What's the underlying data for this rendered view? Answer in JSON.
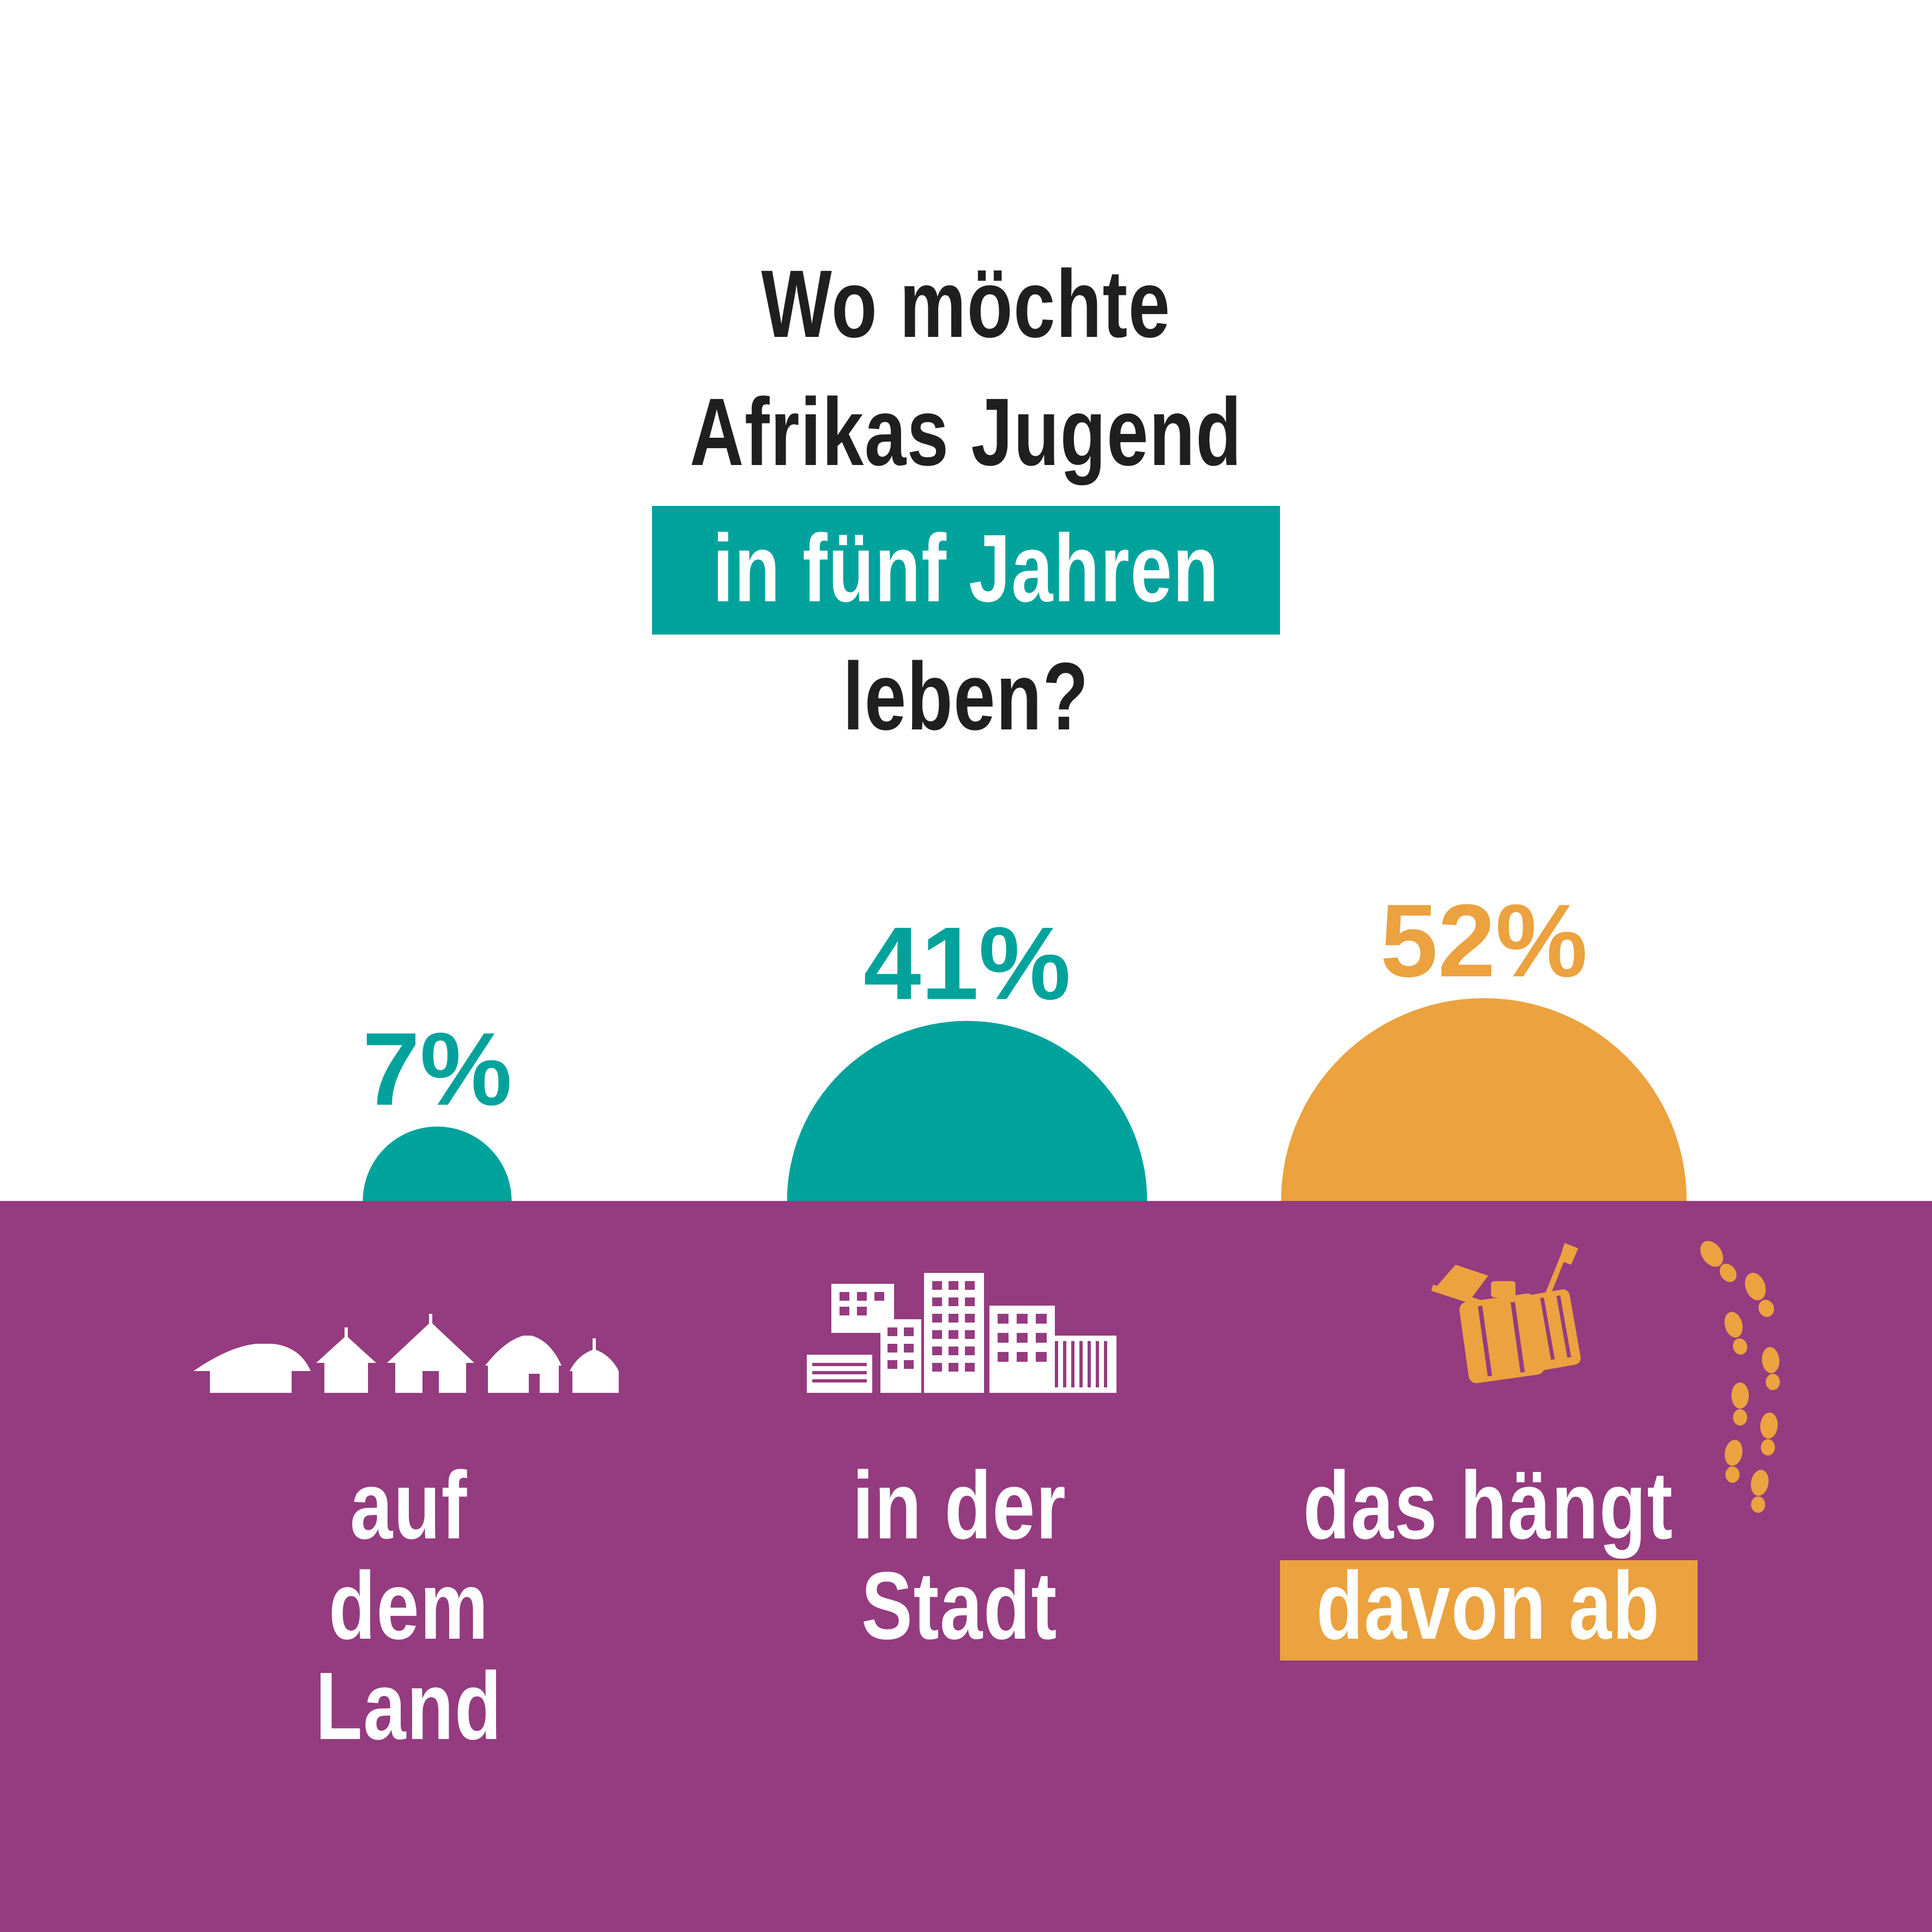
{
  "title": {
    "line1": "Wo möchte",
    "line2": "Afrikas Jugend",
    "highlight": "in fünf Jahren",
    "line4": "leben?"
  },
  "colors": {
    "teal": "#00a39c",
    "orange": "#eba23f",
    "purple": "#953b80",
    "dark": "#1f1f1f",
    "white": "#ffffff"
  },
  "icons": {
    "country": "village-huts-icon",
    "city": "city-buildings-icon",
    "depends": "suitcase-luggage-icon",
    "footsteps": "footprints-icon"
  },
  "chart_data": {
    "type": "pie",
    "categories": [
      "auf dem Land",
      "in der Stadt",
      "das hängt davon ab"
    ],
    "values": [
      7,
      41,
      52
    ],
    "value_labels": [
      "7%",
      "41%",
      "52%"
    ],
    "labels": [
      {
        "line1": "auf dem",
        "line2": "Land"
      },
      {
        "line1": "in der",
        "line2": "Stadt"
      },
      {
        "line1": "das hängt",
        "line2": "davon ab"
      }
    ],
    "colors": [
      "#00a39c",
      "#00a39c",
      "#eba23f"
    ]
  }
}
